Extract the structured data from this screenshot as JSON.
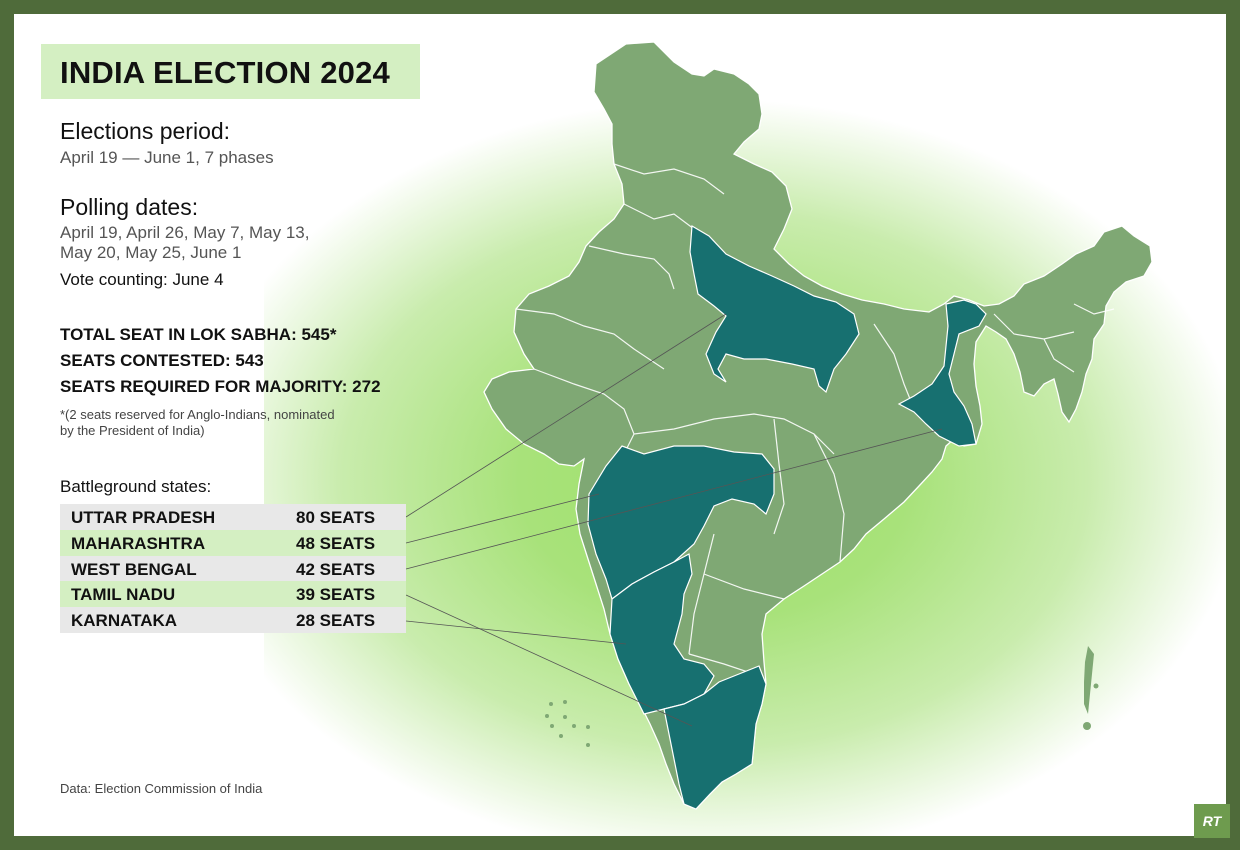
{
  "title": "INDIA ELECTION 2024",
  "election_period": {
    "heading": "Elections period:",
    "text": "April 19 — June 1, 7 phases"
  },
  "polling": {
    "heading": "Polling dates:",
    "line1": "April 19, April 26, May 7, May 13,",
    "line2": "May 20, May 25, June 1",
    "counting": "Vote counting: June 4"
  },
  "stats": {
    "total": "TOTAL SEAT IN LOK SABHA: 545*",
    "contested": "SEATS CONTESTED: 543",
    "majority": "SEATS REQUIRED FOR MAJORITY: 272",
    "footnote_line1": "*(2 seats reserved for Anglo-Indians, nominated",
    "footnote_line2": "by the President of India)"
  },
  "battleground": {
    "heading": "Battleground states:",
    "states": [
      {
        "name": "UTTAR PRADESH",
        "seats": "80 SEATS"
      },
      {
        "name": "MAHARASHTRA",
        "seats": "48 SEATS"
      },
      {
        "name": "WEST BENGAL",
        "seats": "42 SEATS"
      },
      {
        "name": "TAMIL NADU",
        "seats": "39 SEATS"
      },
      {
        "name": "KARNATAKA",
        "seats": "28 SEATS"
      }
    ]
  },
  "source": "Data: Election Commission of India",
  "logo": "RT",
  "colors": {
    "frame": "#4f6b3a",
    "state_fill": "#7fa874",
    "battleground_fill": "#177070",
    "title_bg": "#d4efc2",
    "glow": "#9ee06a"
  }
}
